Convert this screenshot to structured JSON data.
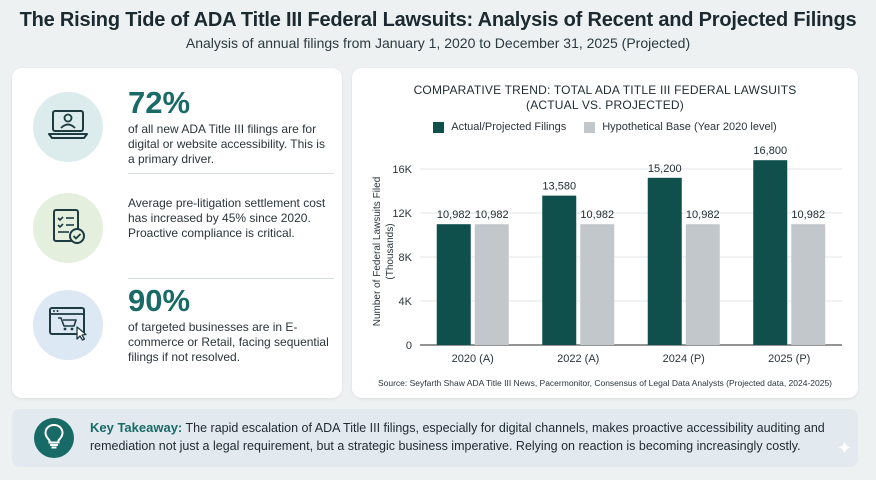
{
  "header": {
    "title": "The Rising Tide of ADA Title III Federal Lawsuits: Analysis of Recent and Projected Filings",
    "subtitle": "Analysis of annual filings from January 1, 2020 to December 31, 2025 (Projected)"
  },
  "stats": [
    {
      "icon": "laptop-user-icon",
      "big": "72%",
      "text": "of all new ADA Title III filings are for digital or website accessibility. This is a primary driver.",
      "circle_color": "#dcebec"
    },
    {
      "icon": "checklist-icon",
      "big": "",
      "text": "Average pre-litigation settlement cost has increased by 45% since 2020. Proactive compliance is critical.",
      "circle_color": "#e4f0dd"
    },
    {
      "icon": "shopping-cart-browser-icon",
      "big": "90%",
      "text": "of targeted businesses are in E-commerce or Retail, facing sequential filings if not resolved.",
      "circle_color": "#dce8f3"
    }
  ],
  "chart_data": {
    "type": "bar",
    "title": "COMPARATIVE TREND: TOTAL ADA TITLE III FEDERAL LAWSUITS (ACTUAL VS. PROJECTED)",
    "categories": [
      "2020 (A)",
      "2022 (A)",
      "2024 (P)",
      "2025 (P)"
    ],
    "series": [
      {
        "name": "Actual/Projected Filings",
        "values": [
          10982,
          13580,
          15200,
          16800
        ],
        "labels": [
          "10,982",
          "13,580",
          "15,200",
          "16,800"
        ],
        "color": "#0f4f4c"
      },
      {
        "name": "Hypothetical Base (Year 2020 level)",
        "values": [
          10982,
          10982,
          10982,
          10982
        ],
        "labels": [
          "10,982",
          "10,982",
          "10,982",
          "10,982"
        ],
        "color": "#c2c7cc"
      }
    ],
    "ylabel": "Number of Federal Lawsuits Filed (Thousands)",
    "xlabel": "",
    "ylim": [
      0,
      17000
    ],
    "yticks": [
      0,
      4000,
      8000,
      12000,
      16000
    ],
    "ytick_labels": [
      "0",
      "4K",
      "8K",
      "12K",
      "16K"
    ],
    "grid": true,
    "legend": "top-center",
    "source": "Source: Seyfarth Shaw ADA Title III News, Pacermonitor, Consensus of Legal Data Analysts (Projected data, 2024-2025)"
  },
  "takeaway": {
    "label": "Key Takeaway:",
    "text": "The rapid escalation of ADA Title III filings, especially for digital channels, makes proactive accessibility auditing and remediation not just a legal requirement, but a strategic business imperative. Relying on reaction is becoming increasingly costly.",
    "icon": "lightbulb-icon"
  }
}
